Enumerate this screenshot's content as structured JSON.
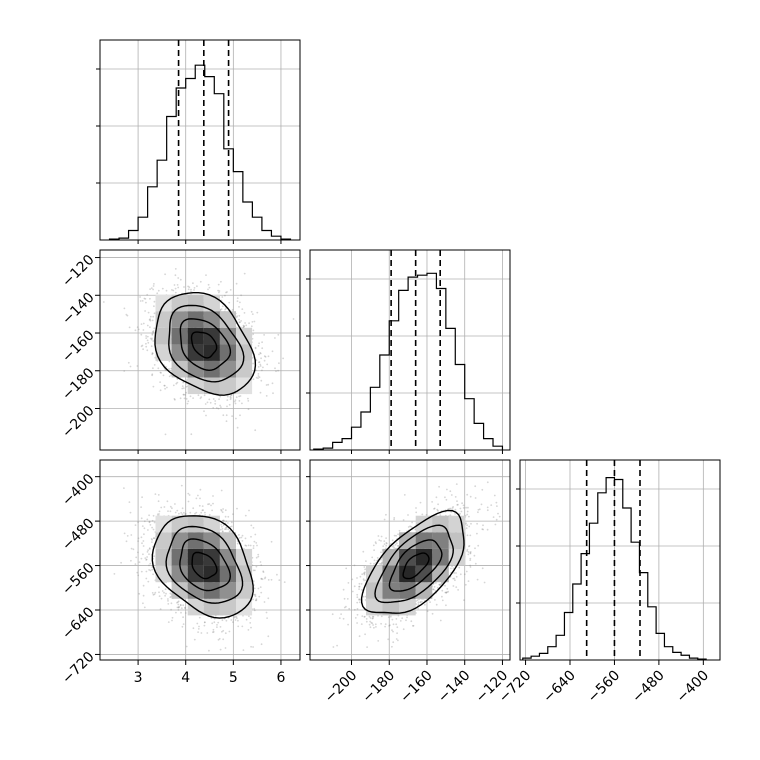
{
  "chart_data": {
    "type": "corner",
    "grid": true,
    "parameters": [
      {
        "id": "p1",
        "range": [
          2.2,
          6.4
        ],
        "ticks": [
          "3",
          "4",
          "5",
          "6"
        ],
        "tick_values": [
          3,
          4,
          5,
          6
        ],
        "quantiles": [
          3.85,
          4.38,
          4.9
        ],
        "histogram": {
          "edges": [
            2.4,
            2.6,
            2.8,
            3.0,
            3.2,
            3.4,
            3.6,
            3.8,
            4.0,
            4.2,
            4.3,
            4.4,
            4.6,
            4.8,
            5.0,
            5.2,
            5.4,
            5.6,
            5.8,
            6.0,
            6.2
          ],
          "counts": [
            0.005,
            0.01,
            0.05,
            0.12,
            0.28,
            0.42,
            0.65,
            0.8,
            0.85,
            0.92,
            0.92,
            0.86,
            0.77,
            0.48,
            0.36,
            0.2,
            0.12,
            0.05,
            0.02,
            0.005
          ]
        }
      },
      {
        "id": "p2",
        "range": [
          -222,
          -116
        ],
        "ticks": [
          "−200",
          "−180",
          "−160",
          "−140",
          "−120"
        ],
        "tick_values": [
          -200,
          -180,
          -160,
          -140,
          -120
        ],
        "ticks_left": [
          "−120",
          "−140",
          "−160",
          "−180",
          "−200"
        ],
        "tick_values_left": [
          -120,
          -140,
          -160,
          -180,
          -200
        ],
        "quantiles": [
          -179,
          -166,
          -153
        ],
        "histogram": {
          "edges": [
            -220,
            -215,
            -210,
            -205,
            -200,
            -195,
            -190,
            -185,
            -180,
            -175,
            -170,
            -165,
            -160,
            -155,
            -150,
            -145,
            -140,
            -135,
            -130,
            -125,
            -120
          ],
          "counts": [
            0.005,
            0.01,
            0.04,
            0.06,
            0.12,
            0.2,
            0.33,
            0.5,
            0.68,
            0.84,
            0.91,
            0.92,
            0.93,
            0.85,
            0.64,
            0.45,
            0.27,
            0.14,
            0.06,
            0.02
          ]
        }
      },
      {
        "id": "p3",
        "range": [
          -730,
          -370
        ],
        "ticks": [
          "−720",
          "−640",
          "−560",
          "−480",
          "−400"
        ],
        "tick_values": [
          -720,
          -640,
          -560,
          -480,
          -400
        ],
        "ticks_left": [
          "−400",
          "−480",
          "−560",
          "−640",
          "−720"
        ],
        "tick_values_left": [
          -400,
          -480,
          -560,
          -640,
          -720
        ],
        "quantiles": [
          -610,
          -560,
          -514
        ],
        "histogram": {
          "edges": [
            -725,
            -710,
            -695,
            -680,
            -665,
            -650,
            -635,
            -620,
            -605,
            -590,
            -575,
            -560,
            -545,
            -530,
            -515,
            -500,
            -485,
            -470,
            -455,
            -440,
            -425,
            -410,
            -395
          ],
          "counts": [
            0.01,
            0.02,
            0.035,
            0.07,
            0.13,
            0.25,
            0.4,
            0.56,
            0.72,
            0.88,
            0.96,
            0.95,
            0.8,
            0.62,
            0.46,
            0.28,
            0.14,
            0.07,
            0.04,
            0.025,
            0.01,
            0.005
          ]
        }
      }
    ],
    "pairs": [
      {
        "x": "p1",
        "y": "p2",
        "center": [
          4.38,
          -166
        ],
        "sigma": [
          0.52,
          13.5
        ],
        "rho": -0.3
      },
      {
        "x": "p1",
        "y": "p3",
        "center": [
          4.38,
          -560
        ],
        "sigma": [
          0.52,
          46
        ],
        "rho": -0.3
      },
      {
        "x": "p2",
        "y": "p3",
        "center": [
          -166,
          -560
        ],
        "sigma": [
          13.5,
          46
        ],
        "rho": 0.6
      }
    ],
    "contour_levels": [
      0.5,
      1.0,
      1.5,
      2.0
    ]
  }
}
